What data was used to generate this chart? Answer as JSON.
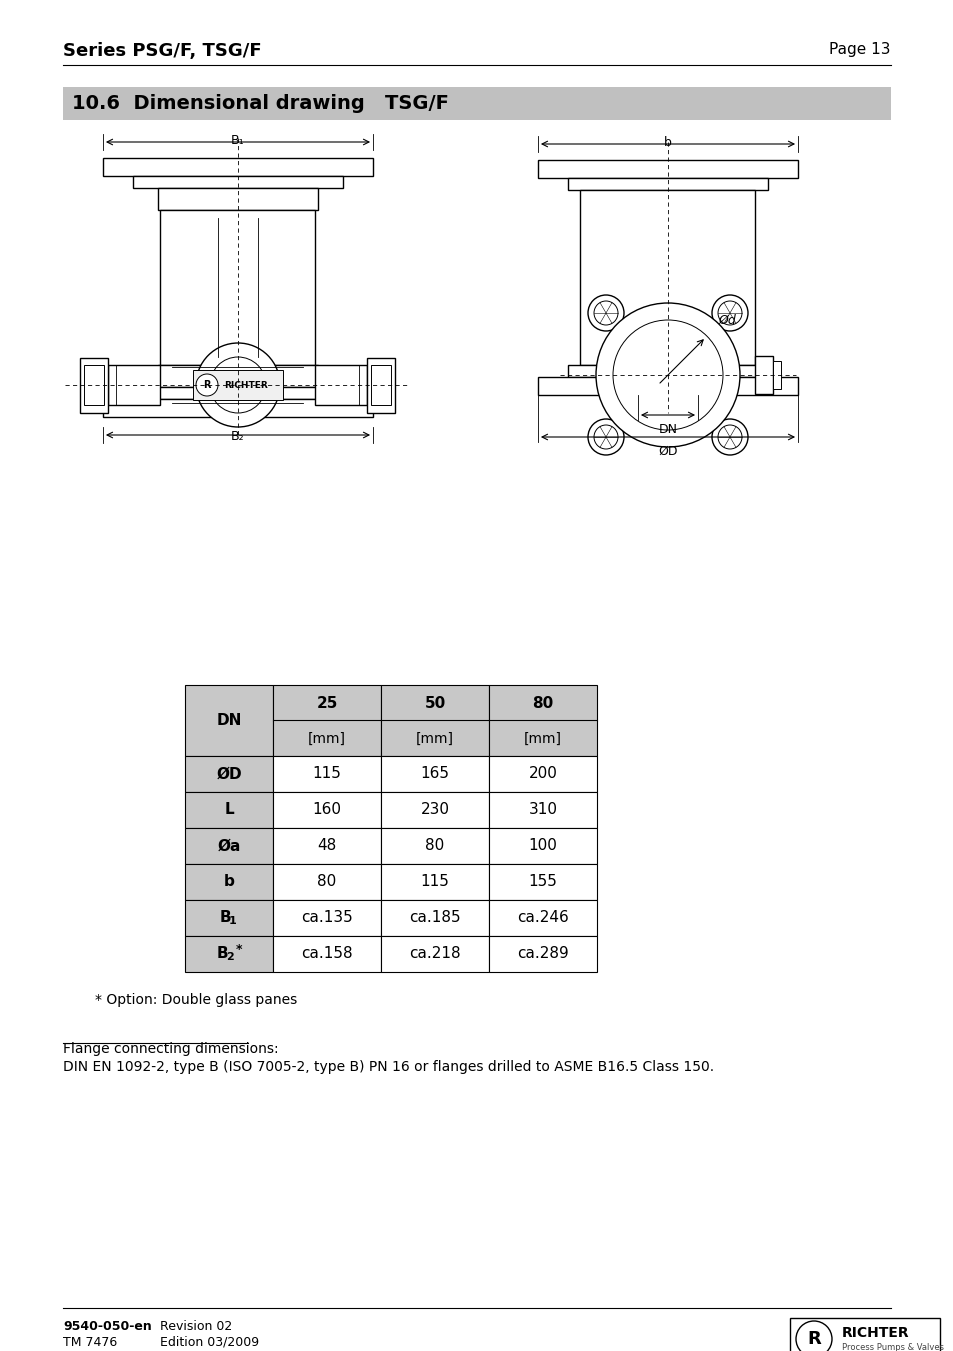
{
  "page_title_left": "Series PSG/F, TSG/F",
  "page_title_right": "Page 13",
  "section_title": "10.6  Dimensional drawing   TSG/F",
  "section_bg_color": "#c0c0c0",
  "table_headers": [
    "DN",
    "25",
    "50",
    "80"
  ],
  "table_subheaders": [
    "",
    "[mm]",
    "[mm]",
    "[mm]"
  ],
  "table_rows": [
    [
      "ØD",
      "115",
      "165",
      "200"
    ],
    [
      "L",
      "160",
      "230",
      "310"
    ],
    [
      "Øa",
      "48",
      "80",
      "100"
    ],
    [
      "b",
      "80",
      "115",
      "155"
    ],
    [
      "B1",
      "ca.135",
      "ca.185",
      "ca.246"
    ],
    [
      "B2*",
      "ca.158",
      "ca.218",
      "ca.289"
    ]
  ],
  "note_star": "* Option: Double glass panes",
  "flange_title": "Flange connecting dimensions:",
  "flange_text": "DIN EN 1092-2, type B (ISO 7005-2, type B) PN 16 or flanges drilled to ASME B16.5 Class 150.",
  "footer_code": "9540-050-en",
  "footer_tm": "TM 7476",
  "footer_rev": "Revision 02",
  "footer_ed": "Edition 03/2009",
  "header_color": "#c8c8c8",
  "row_header_color": "#c8c8c8"
}
